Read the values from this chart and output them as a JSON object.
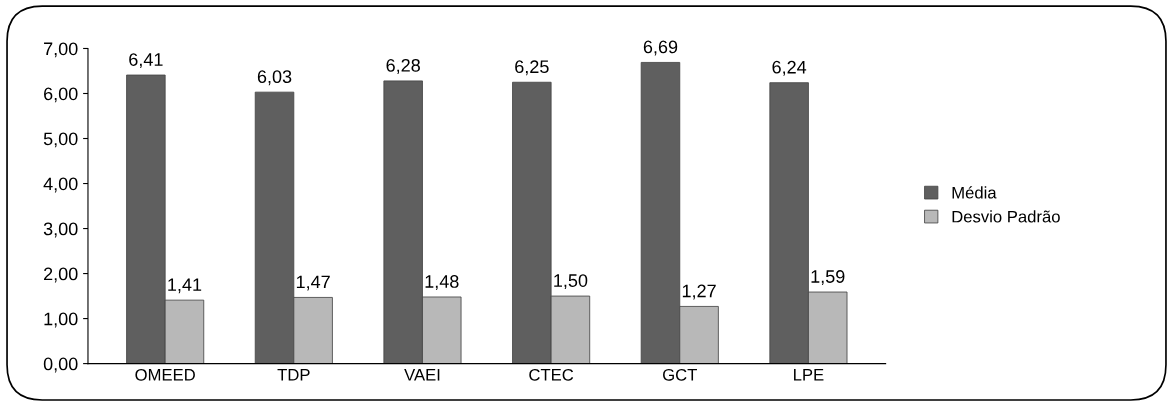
{
  "chart_data": {
    "type": "bar",
    "categories": [
      "OMEED",
      "TDP",
      "VAEI",
      "CTEC",
      "GCT",
      "LPE"
    ],
    "series": [
      {
        "name": "Média",
        "color": "#5f5f5f",
        "values": [
          6.41,
          6.03,
          6.28,
          6.25,
          6.69,
          6.24
        ],
        "value_labels": [
          "6,41",
          "6,03",
          "6,28",
          "6,25",
          "6,69",
          "6,24"
        ]
      },
      {
        "name": "Desvio Padrão",
        "color": "#b8b8b8",
        "values": [
          1.41,
          1.47,
          1.48,
          1.5,
          1.27,
          1.59
        ],
        "value_labels": [
          "1,41",
          "1,47",
          "1,48",
          "1,50",
          "1,27",
          "1,59"
        ]
      }
    ],
    "ylim": [
      0,
      7
    ],
    "yticks": [
      {
        "value": 0,
        "label": "0,00"
      },
      {
        "value": 1,
        "label": "1,00"
      },
      {
        "value": 2,
        "label": "2,00"
      },
      {
        "value": 3,
        "label": "3,00"
      },
      {
        "value": 4,
        "label": "4,00"
      },
      {
        "value": 5,
        "label": "5,00"
      },
      {
        "value": 6,
        "label": "6,00"
      },
      {
        "value": 7,
        "label": "7,00"
      }
    ],
    "grid": false,
    "legend": "right"
  }
}
